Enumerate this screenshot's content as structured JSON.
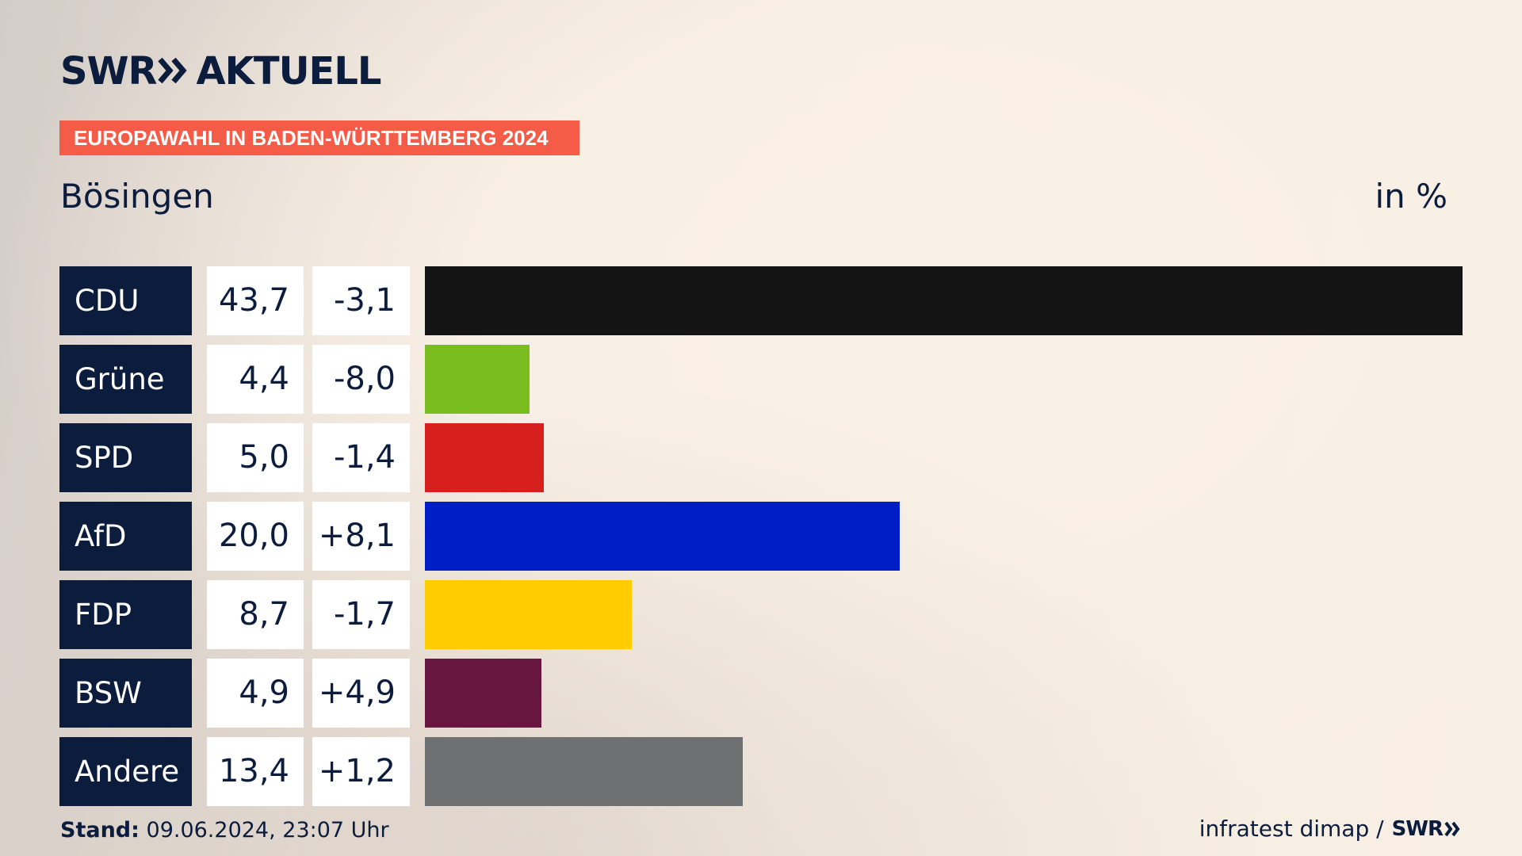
{
  "brand": {
    "logo_left": "SWR",
    "logo_right": "AKTUELL"
  },
  "banner": "EUROPAWAHL IN BADEN-WÜRTTEMBERG 2024",
  "place": "Bösingen",
  "unit": "in %",
  "footer": {
    "stand_label": "Stand:",
    "stand_value": "09.06.2024, 23:07 Uhr",
    "source": "infratest dimap /",
    "source_logo": "SWR"
  },
  "chart_data": {
    "type": "bar",
    "orientation": "horizontal",
    "categories": [
      "CDU",
      "Grüne",
      "SPD",
      "AfD",
      "FDP",
      "BSW",
      "Andere"
    ],
    "values": [
      43.7,
      4.4,
      5.0,
      20.0,
      8.7,
      4.9,
      13.4
    ],
    "value_labels": [
      "43,7",
      "4,4",
      "5,0",
      "20,0",
      "8,7",
      "4,9",
      "13,4"
    ],
    "changes": [
      -3.1,
      -8.0,
      -1.4,
      8.1,
      -1.7,
      4.9,
      1.2
    ],
    "change_labels": [
      "-3,1",
      "-8,0",
      "-1,4",
      "+8,1",
      "-1,7",
      "+4,9",
      "+1,2"
    ],
    "colors": [
      "#141414",
      "#79bd1e",
      "#d71f1e",
      "#001ec6",
      "#ffcc00",
      "#671640",
      "#6f7071"
    ],
    "xlim": [
      0,
      43.7
    ],
    "title": "",
    "xlabel": "",
    "ylabel": ""
  }
}
